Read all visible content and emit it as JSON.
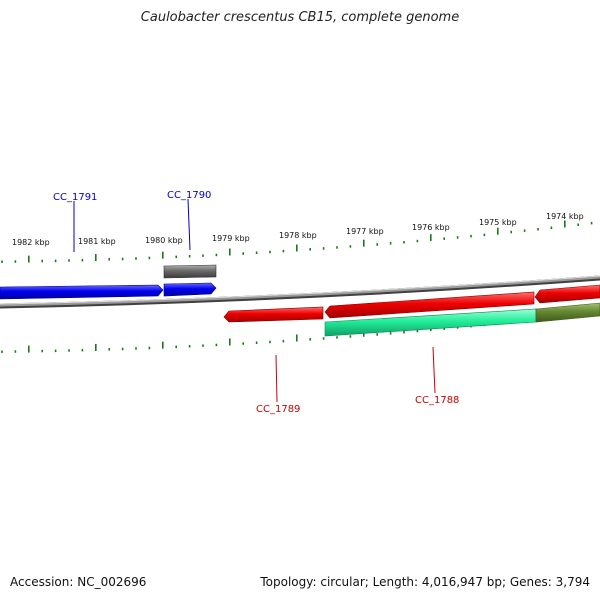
{
  "title": "Caulobacter crescentus CB15, complete genome",
  "footer": {
    "accession": "Accession: NC_002696",
    "stats": "Topology: circular; Length: 4,016,947 bp; Genes: 3,794"
  },
  "colors": {
    "forward_gene": "#0000ee",
    "reverse_gene": "#ee0000",
    "rna_gene": "#707070",
    "gc_feature": "#22ee99",
    "overlap_feature": "#668833",
    "backbone": "#808080",
    "tick": "#1a7a1a"
  },
  "ruler": {
    "unit": "kbp",
    "labels": [
      "1982 kbp",
      "1981 kbp",
      "1980 kbp",
      "1979 kbp",
      "1978 kbp",
      "1977 kbp",
      "1976 kbp",
      "1975 kbp",
      "1974 kbp"
    ]
  },
  "genes": {
    "forward_labels": [
      "CC_1791",
      "CC_1790"
    ],
    "reverse_labels": [
      "CC_1789",
      "CC_1788"
    ]
  }
}
